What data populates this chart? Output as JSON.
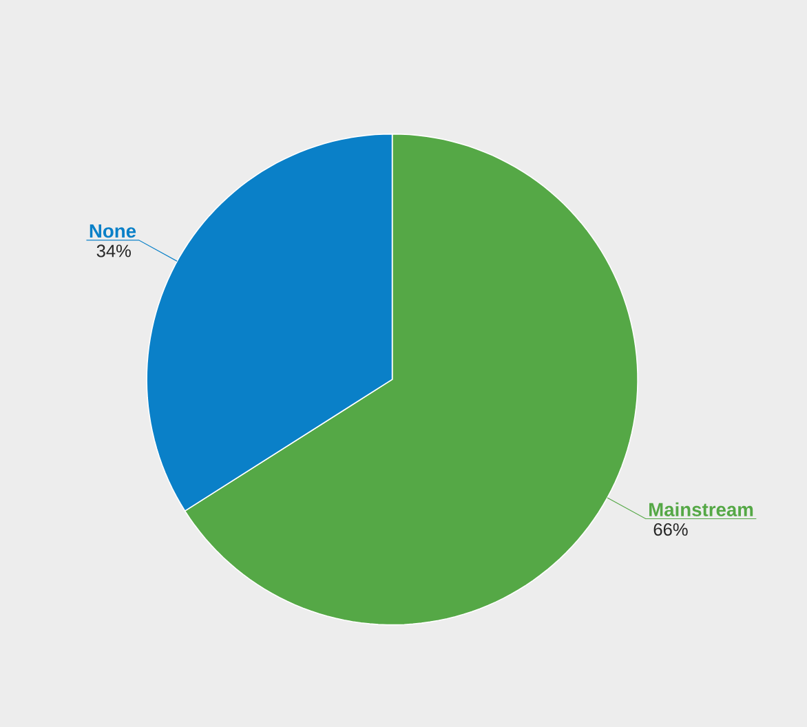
{
  "chart_data": {
    "type": "pie",
    "categories": [
      "Mainstream",
      "None"
    ],
    "values": [
      66,
      34
    ],
    "colors": [
      "#55a846",
      "#0a80c8"
    ],
    "value_labels": [
      "66%",
      "34%"
    ]
  }
}
